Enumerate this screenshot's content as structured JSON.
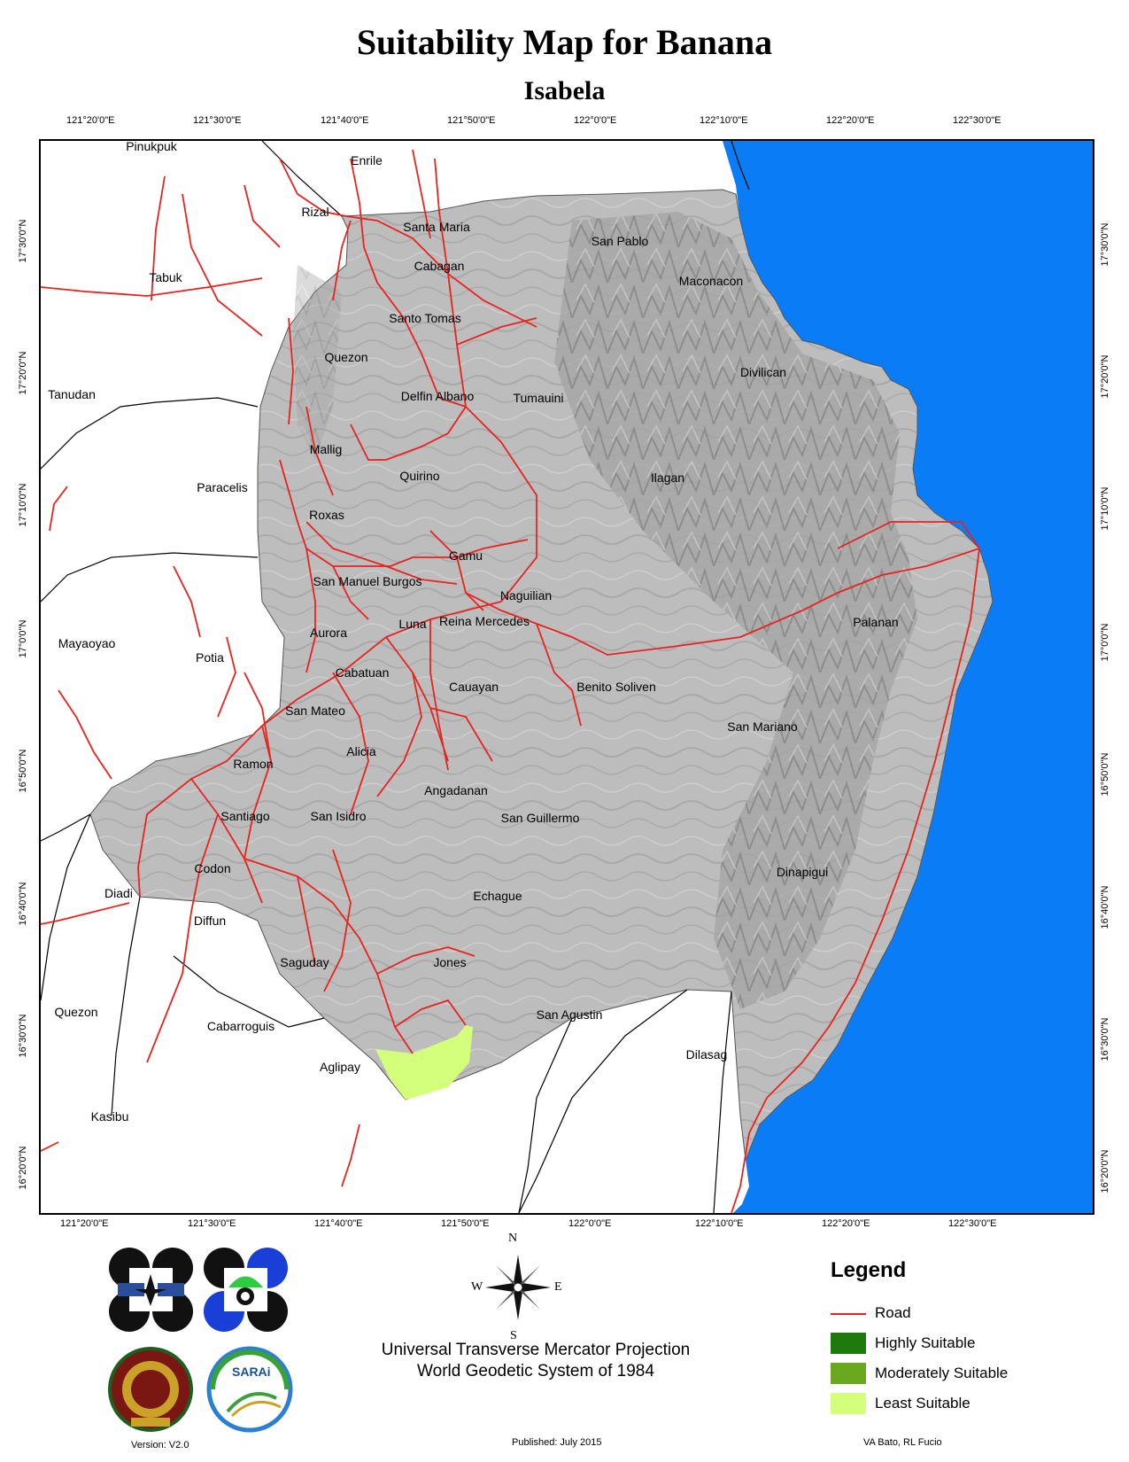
{
  "title": "Suitability Map for Banana",
  "subtitle": "Isabela",
  "top_ticks": [
    "121°20'0\"E",
    "121°30'0\"E",
    "121°40'0\"E",
    "121°50'0\"E",
    "122°0'0\"E",
    "122°10'0\"E",
    "122°20'0\"E",
    "122°30'0\"E"
  ],
  "bottom_ticks": [
    "121°20'0\"E",
    "121°30'0\"E",
    "121°40'0\"E",
    "121°50'0\"E",
    "122°0'0\"E",
    "122°10'0\"E",
    "122°20'0\"E",
    "122°30'0\"E"
  ],
  "left_ticks": [
    "17°30'0\"N",
    "17°20'0\"N",
    "17°10'0\"N",
    "17°0'0\"N",
    "16°50'0\"N",
    "16°40'0\"N",
    "16°30'0\"N",
    "16°20'0\"N"
  ],
  "right_ticks": [
    "17°30'0\"N",
    "17°20'0\"N",
    "17°10'0\"N",
    "17°0'0\"N",
    "16°50'0\"N",
    "16°40'0\"N",
    "16°30'0\"N",
    "16°20'0\"N"
  ],
  "places": {
    "pinukpuk": "Pinukpuk",
    "enrile": "Enrile",
    "rizal": "Rizal",
    "santa_maria": "Santa Maria",
    "san_pablo": "San Pablo",
    "tabuk": "Tabuk",
    "cabagan": "Cabagan",
    "maconacon": "Maconacon",
    "santo_tomas": "Santo Tomas",
    "quezon_isabela": "Quezon",
    "divilican": "Divilican",
    "tanudan": "Tanudan",
    "delfin_albano": "Delfin Albano",
    "tumauini": "Tumauini",
    "mallig": "Mallig",
    "quirino": "Quirino",
    "ilagan": "Ilagan",
    "paracelis": "Paracelis",
    "roxas": "Roxas",
    "gamu": "Gamu",
    "san_manuel_burgos": "San Manuel Burgos",
    "naguilian": "Naguilian",
    "luna": "Luna",
    "reina_mercedes": "Reina Mercedes",
    "palanan": "Palanan",
    "aurora": "Aurora",
    "mayaoyao": "Mayaoyao",
    "potia": "Potia",
    "cabatuan": "Cabatuan",
    "cauayan": "Cauayan",
    "benito_soliven": "Benito Soliven",
    "san_mateo": "San Mateo",
    "san_mariano": "San Mariano",
    "alicia": "Alicia",
    "ramon": "Ramon",
    "angadanan": "Angadanan",
    "santiago": "Santiago",
    "san_isidro": "San Isidro",
    "san_guillermo": "San Guillermo",
    "codon": "Codon",
    "dinapigui": "Dinapigui",
    "diadi": "Diadi",
    "echague": "Echague",
    "diffun": "Diffun",
    "saguday": "Saguday",
    "jones": "Jones",
    "quezon_nv": "Quezon",
    "san_agustin": "San Agustin",
    "cabarroguis": "Cabarroguis",
    "dilasag": "Dilasag",
    "aglipay": "Aglipay",
    "kasibu": "Kasibu"
  },
  "compass": {
    "n": "N",
    "s": "S",
    "e": "E",
    "w": "W"
  },
  "legend": {
    "title": "Legend",
    "items": [
      {
        "label": "Road",
        "color": "#e8231e",
        "kind": "line"
      },
      {
        "label": "Highly Suitable",
        "color": "#1f7a0c",
        "kind": "fill"
      },
      {
        "label": "Moderately Suitable",
        "color": "#6aa820",
        "kind": "fill"
      },
      {
        "label": "Least Suitable",
        "color": "#d3ff7a",
        "kind": "fill"
      }
    ]
  },
  "projection": {
    "line1": "Universal Transverse Mercator Projection",
    "line2": "World Geodetic System of 1984"
  },
  "version": "Version: V2.0",
  "published": "Published: July 2015",
  "authors": "VA Bato, RL Fucio",
  "logos": {
    "sarai": "SARAi"
  },
  "colors": {
    "sea": "#0a7cf5",
    "province": "#bdbdbd",
    "road": "#e8231e",
    "least_suitable": "#d3ff7a"
  }
}
